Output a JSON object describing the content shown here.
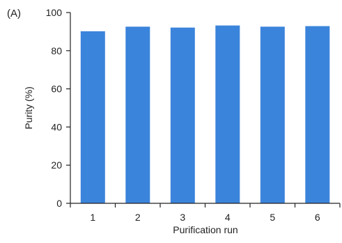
{
  "panel_label": "(A)",
  "chart_data": {
    "type": "bar",
    "categories": [
      "1",
      "2",
      "3",
      "4",
      "5",
      "6"
    ],
    "values": [
      90.2,
      92.6,
      92.1,
      93.2,
      92.6,
      92.9
    ],
    "xlabel": "Purification run",
    "ylabel": "Purity (%)",
    "ylim": [
      0,
      100
    ],
    "yticks": [
      0,
      20,
      40,
      60,
      80,
      100
    ],
    "grid": false,
    "bar_color": "#3b84db"
  }
}
